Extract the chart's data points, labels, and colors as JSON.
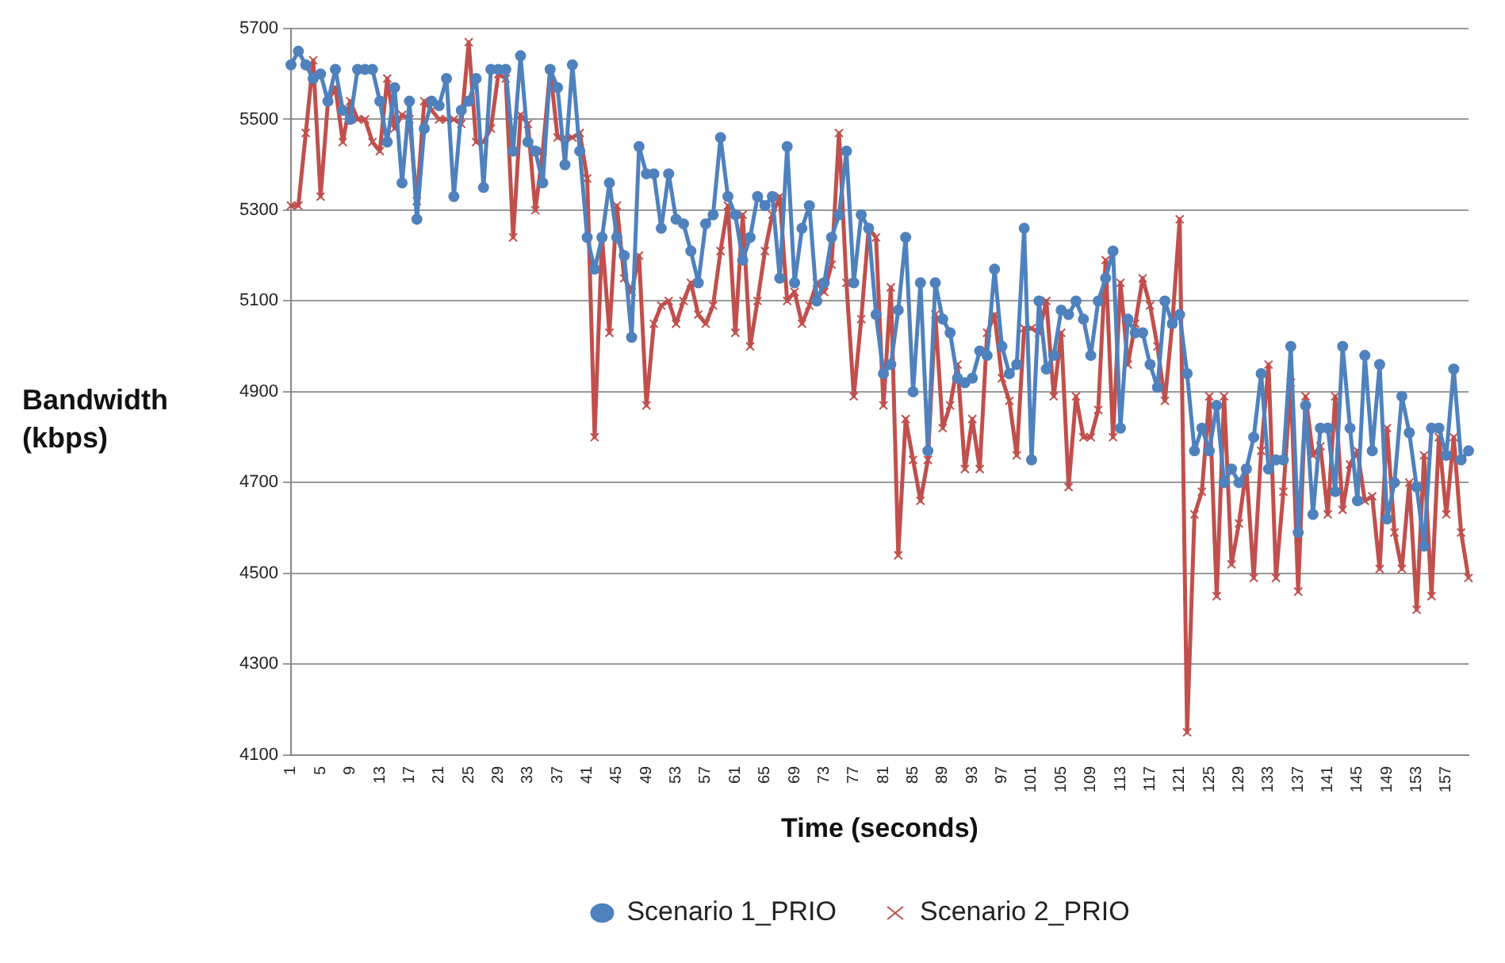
{
  "chart_data": {
    "type": "line",
    "xlabel": "Time (seconds)",
    "ylabel": "Bandwidth (kbps)",
    "categories": [
      "1",
      null,
      null,
      null,
      "5",
      null,
      null,
      null,
      "9",
      null,
      null,
      null,
      "13",
      null,
      null,
      null,
      "17",
      null,
      null,
      null,
      "21",
      null,
      null,
      null,
      "25",
      null,
      null,
      null,
      "29",
      null,
      null,
      null,
      "33",
      null,
      null,
      null,
      "37",
      null,
      null,
      null,
      "41",
      null,
      null,
      null,
      "45",
      null,
      null,
      null,
      "49",
      null,
      null,
      null,
      "53",
      null,
      null,
      null,
      "57",
      null,
      null,
      null,
      "61",
      null,
      null,
      null,
      "65",
      null,
      null,
      null,
      "69",
      null,
      null,
      null,
      "73",
      null,
      null,
      null,
      "77",
      null,
      null,
      null,
      "81",
      null,
      null,
      null,
      "85",
      null,
      null,
      null,
      "89",
      null,
      null,
      null,
      "93",
      null,
      null,
      null,
      "97",
      null,
      null,
      null,
      "101",
      null,
      null,
      null,
      "105",
      null,
      null,
      null,
      "109",
      null,
      null,
      null,
      "113",
      null,
      null,
      null,
      "117",
      null,
      null,
      null,
      "121",
      null,
      null,
      null,
      "125",
      null,
      null,
      null,
      "129",
      null,
      null,
      null,
      "133",
      null,
      null,
      null,
      "137",
      null,
      null,
      null,
      "141",
      null,
      null,
      null,
      "145",
      null,
      null,
      null,
      "149",
      null,
      null,
      null,
      "153",
      null,
      null,
      null,
      "157",
      null,
      null,
      null
    ],
    "series": [
      {
        "name": "Scenario 1_PRIO",
        "color": "#4f81bd",
        "marker": "circle",
        "values": [
          5620,
          5650,
          5620,
          5590,
          5600,
          5540,
          5610,
          5520,
          5500,
          5610,
          5610,
          5610,
          5540,
          5450,
          5570,
          5360,
          5540,
          5280,
          5480,
          5540,
          5530,
          5590,
          5330,
          5520,
          5540,
          5590,
          5350,
          5610,
          5610,
          5610,
          5430,
          5640,
          5450,
          5430,
          5360,
          5610,
          5570,
          5400,
          5620,
          5430,
          5240,
          5170,
          5240,
          5360,
          5240,
          5200,
          5020,
          5440,
          5380,
          5380,
          5260,
          5380,
          5280,
          5270,
          5210,
          5140,
          5270,
          5290,
          5460,
          5330,
          5290,
          5190,
          5240,
          5330,
          5310,
          5330,
          5150,
          5440,
          5140,
          5260,
          5310,
          5100,
          5140,
          5240,
          5290,
          5430,
          5140,
          5290,
          5260,
          5070,
          4940,
          4960,
          5080,
          5240,
          4900,
          5140,
          4770,
          5140,
          5060,
          5030,
          4930,
          4920,
          4930,
          4990,
          4980,
          5170,
          5000,
          4940,
          4960,
          5260,
          4750,
          5100,
          4950,
          4980,
          5080,
          5070,
          5100,
          5060,
          4980,
          5100,
          5150,
          5210,
          4820,
          5060,
          5030,
          5030,
          4960,
          4910,
          5100,
          5050,
          5070,
          4940,
          4770,
          4820,
          4770,
          4870,
          4700,
          4730,
          4700,
          4730,
          4800,
          4940,
          4730,
          4750,
          4750,
          5000,
          4590,
          4870,
          4630,
          4820,
          4820,
          4680,
          5000,
          4820,
          4660,
          4980,
          4770,
          4960,
          4620,
          4700,
          4890,
          4810,
          4690,
          4560,
          4820,
          4820,
          4760,
          4950,
          4750,
          4770
        ]
      },
      {
        "name": "Scenario 2_PRIO",
        "color": "#c0504d",
        "marker": "cross",
        "values": [
          5310,
          5310,
          5470,
          5630,
          5330,
          5540,
          5570,
          5450,
          5540,
          5500,
          5500,
          5450,
          5430,
          5590,
          5480,
          5510,
          5500,
          5320,
          5540,
          5520,
          5500,
          5500,
          5500,
          5490,
          5670,
          5450,
          5450,
          5480,
          5600,
          5590,
          5240,
          5510,
          5490,
          5300,
          5430,
          5610,
          5460,
          5460,
          5460,
          5470,
          5370,
          4800,
          5240,
          5030,
          5310,
          5150,
          5120,
          5200,
          4870,
          5050,
          5090,
          5100,
          5050,
          5100,
          5140,
          5070,
          5050,
          5090,
          5210,
          5310,
          5030,
          5290,
          5000,
          5100,
          5210,
          5290,
          5330,
          5100,
          5120,
          5050,
          5090,
          5140,
          5120,
          5180,
          5470,
          5140,
          4890,
          5060,
          5260,
          5240,
          4870,
          5130,
          4540,
          4840,
          4750,
          4660,
          4750,
          5070,
          4820,
          4870,
          4960,
          4730,
          4840,
          4730,
          5030,
          5070,
          4930,
          4880,
          4760,
          5040,
          5040,
          5030,
          5100,
          4890,
          5030,
          4690,
          4890,
          4800,
          4800,
          4860,
          5190,
          4800,
          5140,
          4960,
          5050,
          5150,
          5090,
          5000,
          4880,
          5050,
          5280,
          4150,
          4630,
          4680,
          4890,
          4450,
          4890,
          4520,
          4610,
          4730,
          4490,
          4770,
          4960,
          4490,
          4680,
          4920,
          4460,
          4890,
          4760,
          4780,
          4630,
          4890,
          4640,
          4740,
          4770,
          4660,
          4670,
          4510,
          4820,
          4590,
          4510,
          4700,
          4420,
          4760,
          4450,
          4800,
          4630,
          4800,
          4590,
          4490
        ]
      }
    ],
    "ylim": [
      4100,
      5700
    ],
    "yticks": [
      4100,
      4300,
      4500,
      4700,
      4900,
      5100,
      5300,
      5500,
      5700
    ],
    "grid": "y",
    "legend": "bottom"
  }
}
